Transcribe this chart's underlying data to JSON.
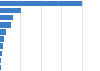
{
  "values": [
    1.0,
    0.26,
    0.155,
    0.13,
    0.068,
    0.05,
    0.04,
    0.028,
    0.018,
    0.012
  ],
  "bar_color": "#3d7ec8",
  "background_color": "#ffffff",
  "grid_color": "#d8d8d8",
  "figsize": [
    1.0,
    0.71
  ],
  "dpi": 100
}
